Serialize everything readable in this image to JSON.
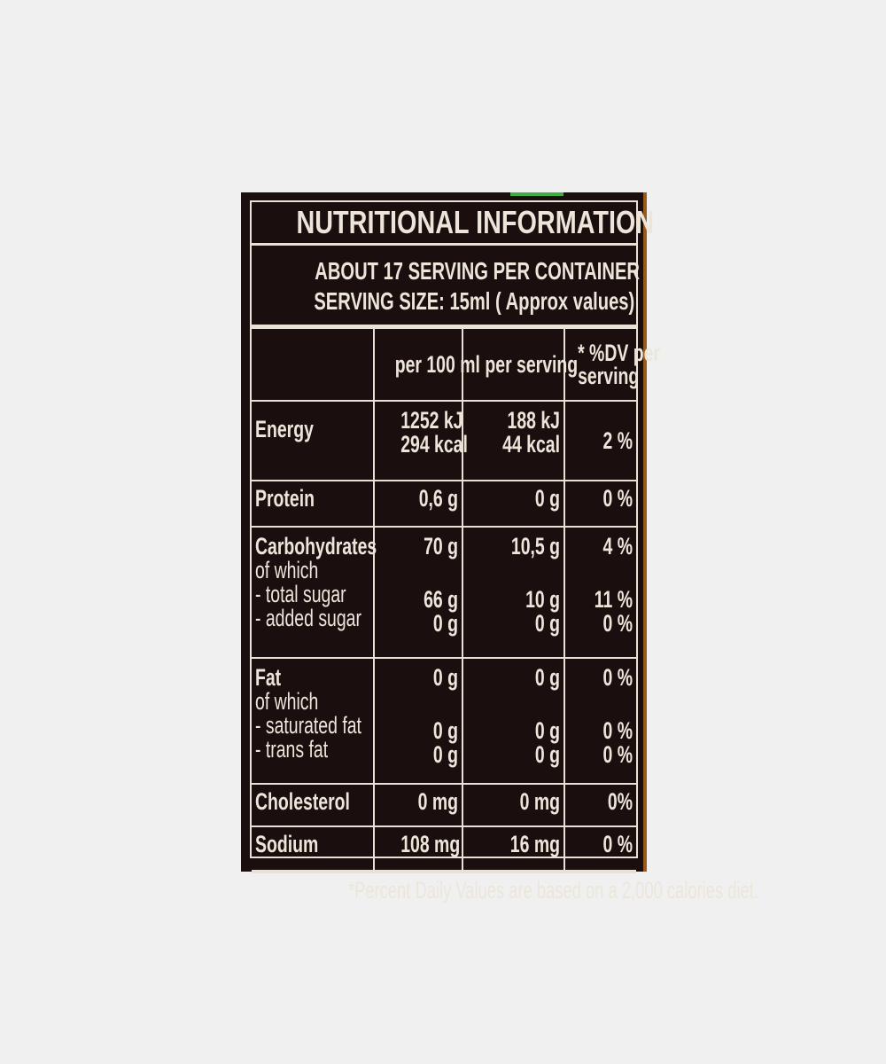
{
  "title": "NUTRITIONAL INFORMATION",
  "servings_per_container": "ABOUT 17 SERVING PER CONTAINER",
  "serving_size": "SERVING SIZE: 15ml ( Approx values)",
  "columns": [
    "",
    "per 100 ml",
    "per serving",
    "* %DV per",
    "serving"
  ],
  "rows": [
    {
      "label": [
        "Energy"
      ],
      "per100": [
        "1252 kJ",
        "294 kcal"
      ],
      "serving": [
        "188 kJ",
        "44 kcal"
      ],
      "dv": [
        "2 %"
      ]
    },
    {
      "label": [
        "Protein"
      ],
      "per100": [
        "0,6 g"
      ],
      "serving": [
        "0 g"
      ],
      "dv": [
        "0 %"
      ]
    },
    {
      "label": [
        "Carbohydrates",
        "of which",
        "- total sugar",
        "- added sugar"
      ],
      "per100": [
        "70 g",
        "",
        "66 g",
        "0 g"
      ],
      "serving": [
        "10,5 g",
        "",
        "10 g",
        "0 g"
      ],
      "dv": [
        "4 %",
        "",
        "11 %",
        "0 %"
      ]
    },
    {
      "label": [
        "Fat",
        "of which",
        "- saturated fat",
        "- trans fat"
      ],
      "per100": [
        "0 g",
        "",
        "0 g",
        "0 g"
      ],
      "serving": [
        "0 g",
        "",
        "0 g",
        "0 g"
      ],
      "dv": [
        "0 %",
        "",
        "0 %",
        "0 %"
      ]
    },
    {
      "label": [
        "Cholesterol"
      ],
      "per100": [
        "0 mg"
      ],
      "serving": [
        "0 mg"
      ],
      "dv": [
        "0%"
      ]
    },
    {
      "label": [
        "Sodium"
      ],
      "per100": [
        "108 mg"
      ],
      "serving": [
        "16 mg"
      ],
      "dv": [
        "0 %"
      ]
    }
  ],
  "footnote": "*Percent Daily Values are based on a 2,000 calories diet."
}
